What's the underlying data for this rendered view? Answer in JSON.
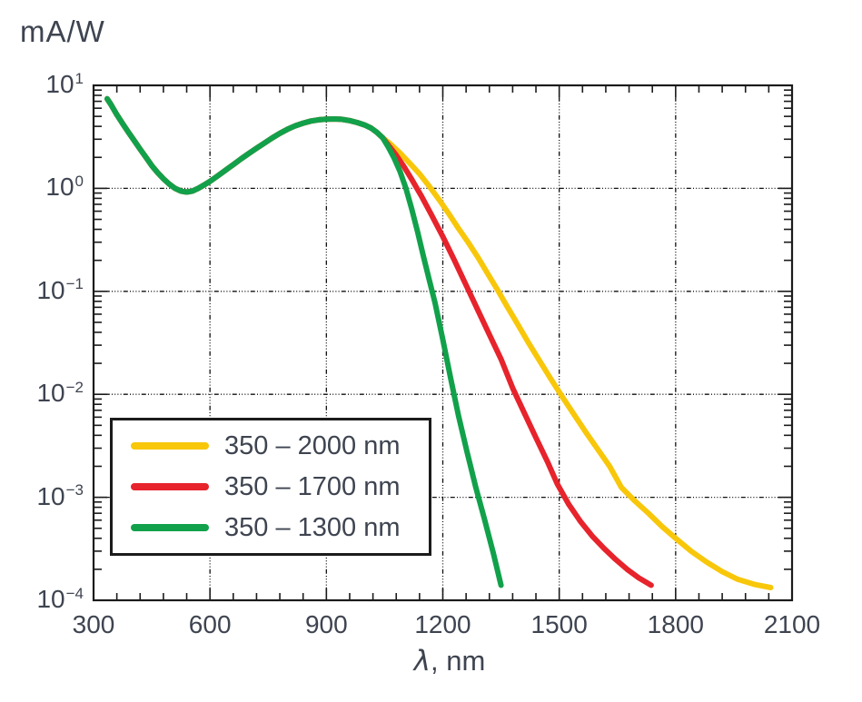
{
  "chart": {
    "y_unit": "mA/W",
    "x_label_symbol": "λ",
    "x_label_rest": ", nm"
  },
  "x_axis": {
    "range": [
      300,
      2100
    ],
    "ticks": [
      300,
      600,
      900,
      1200,
      1500,
      1800,
      2100
    ],
    "minor_step": 60,
    "gridlines": [
      600,
      900,
      1200,
      1500,
      1800
    ]
  },
  "y_axis": {
    "scale": "log",
    "range": [
      0.0001,
      10
    ],
    "base": "10",
    "tick_exponents": [
      {
        "text": "1",
        "value": 1
      },
      {
        "text": "0",
        "value": 0
      },
      {
        "text": "−1",
        "value": -1
      },
      {
        "text": "−2",
        "value": -2
      },
      {
        "text": "−3",
        "value": -3
      },
      {
        "text": "−4",
        "value": -4
      }
    ],
    "gridline_exponents": [
      0,
      -1,
      -2,
      -3
    ]
  },
  "legend": {
    "items": [
      {
        "label": "350 – 2000 nm",
        "color": "#F8C70A"
      },
      {
        "label": "350 – 1700 nm",
        "color": "#E7232C"
      },
      {
        "label": "350 – 1300 nm",
        "color": "#12A14B"
      }
    ]
  },
  "colors": {
    "text": "#3E4450",
    "axis": "#1B1B1B",
    "grid": "#111111",
    "background": "#FFFFFF"
  },
  "chart_data": {
    "type": "line",
    "title": "",
    "xlabel": "λ, nm",
    "ylabel": "mA/W",
    "x_range": [
      300,
      2100
    ],
    "y_range": [
      0.0001,
      10
    ],
    "y_scale": "log",
    "grid": true,
    "legend_position": "lower-left",
    "series": [
      {
        "name": "350 – 2000 nm",
        "color": "#F8C70A",
        "points": [
          [
            335,
            7.4
          ],
          [
            345,
            6.5
          ],
          [
            360,
            5.2
          ],
          [
            375,
            4.25
          ],
          [
            390,
            3.5
          ],
          [
            405,
            2.9
          ],
          [
            420,
            2.4
          ],
          [
            435,
            2.0
          ],
          [
            450,
            1.66
          ],
          [
            465,
            1.42
          ],
          [
            480,
            1.24
          ],
          [
            495,
            1.1
          ],
          [
            510,
            1.0
          ],
          [
            525,
            0.94
          ],
          [
            540,
            0.92
          ],
          [
            555,
            0.94
          ],
          [
            570,
            1.0
          ],
          [
            585,
            1.08
          ],
          [
            600,
            1.17
          ],
          [
            620,
            1.32
          ],
          [
            640,
            1.5
          ],
          [
            660,
            1.7
          ],
          [
            680,
            1.93
          ],
          [
            700,
            2.18
          ],
          [
            720,
            2.45
          ],
          [
            740,
            2.75
          ],
          [
            760,
            3.08
          ],
          [
            780,
            3.42
          ],
          [
            800,
            3.75
          ],
          [
            820,
            4.05
          ],
          [
            840,
            4.3
          ],
          [
            860,
            4.5
          ],
          [
            880,
            4.63
          ],
          [
            900,
            4.7
          ],
          [
            920,
            4.72
          ],
          [
            940,
            4.68
          ],
          [
            960,
            4.55
          ],
          [
            980,
            4.35
          ],
          [
            1000,
            4.1
          ],
          [
            1015,
            3.85
          ],
          [
            1030,
            3.5
          ],
          [
            1045,
            3.1
          ],
          [
            1065,
            2.7
          ],
          [
            1090,
            2.2
          ],
          [
            1115,
            1.75
          ],
          [
            1140,
            1.38
          ],
          [
            1165,
            1.05
          ],
          [
            1190,
            0.78
          ],
          [
            1215,
            0.57
          ],
          [
            1240,
            0.41
          ],
          [
            1265,
            0.3
          ],
          [
            1290,
            0.215
          ],
          [
            1315,
            0.15
          ],
          [
            1340,
            0.105
          ],
          [
            1365,
            0.072
          ],
          [
            1390,
            0.05
          ],
          [
            1420,
            0.032
          ],
          [
            1450,
            0.021
          ],
          [
            1480,
            0.0138
          ],
          [
            1510,
            0.0092
          ],
          [
            1540,
            0.0062
          ],
          [
            1570,
            0.0042
          ],
          [
            1600,
            0.0029
          ],
          [
            1630,
            0.002
          ],
          [
            1660,
            0.00125
          ],
          [
            1695,
            0.00092
          ],
          [
            1730,
            0.0007
          ],
          [
            1765,
            0.00052
          ],
          [
            1800,
            0.0004
          ],
          [
            1840,
            0.0003
          ],
          [
            1880,
            0.000235
          ],
          [
            1920,
            0.00019
          ],
          [
            1960,
            0.00016
          ],
          [
            2005,
            0.000142
          ],
          [
            2045,
            0.000133
          ]
        ]
      },
      {
        "name": "350 – 1700 nm",
        "color": "#E7232C",
        "points": [
          [
            335,
            7.4
          ],
          [
            345,
            6.5
          ],
          [
            360,
            5.2
          ],
          [
            375,
            4.25
          ],
          [
            390,
            3.5
          ],
          [
            405,
            2.9
          ],
          [
            420,
            2.4
          ],
          [
            435,
            2.0
          ],
          [
            450,
            1.66
          ],
          [
            465,
            1.42
          ],
          [
            480,
            1.24
          ],
          [
            495,
            1.1
          ],
          [
            510,
            1.0
          ],
          [
            525,
            0.94
          ],
          [
            540,
            0.92
          ],
          [
            555,
            0.94
          ],
          [
            570,
            1.0
          ],
          [
            585,
            1.08
          ],
          [
            600,
            1.17
          ],
          [
            620,
            1.32
          ],
          [
            640,
            1.5
          ],
          [
            660,
            1.7
          ],
          [
            680,
            1.93
          ],
          [
            700,
            2.18
          ],
          [
            720,
            2.45
          ],
          [
            740,
            2.75
          ],
          [
            760,
            3.08
          ],
          [
            780,
            3.42
          ],
          [
            800,
            3.75
          ],
          [
            820,
            4.05
          ],
          [
            840,
            4.3
          ],
          [
            860,
            4.5
          ],
          [
            880,
            4.63
          ],
          [
            900,
            4.7
          ],
          [
            920,
            4.72
          ],
          [
            940,
            4.68
          ],
          [
            960,
            4.55
          ],
          [
            980,
            4.35
          ],
          [
            1000,
            4.1
          ],
          [
            1015,
            3.85
          ],
          [
            1030,
            3.5
          ],
          [
            1045,
            3.1
          ],
          [
            1060,
            2.62
          ],
          [
            1080,
            2.1
          ],
          [
            1100,
            1.62
          ],
          [
            1120,
            1.22
          ],
          [
            1145,
            0.84
          ],
          [
            1170,
            0.56
          ],
          [
            1200,
            0.34
          ],
          [
            1230,
            0.2
          ],
          [
            1260,
            0.115
          ],
          [
            1290,
            0.066
          ],
          [
            1320,
            0.038
          ],
          [
            1350,
            0.022
          ],
          [
            1380,
            0.0115
          ],
          [
            1410,
            0.0066
          ],
          [
            1440,
            0.0038
          ],
          [
            1470,
            0.0022
          ],
          [
            1495,
            0.00135
          ],
          [
            1525,
            0.00085
          ],
          [
            1555,
            0.00058
          ],
          [
            1585,
            0.00042
          ],
          [
            1615,
            0.00032
          ],
          [
            1645,
            0.00025
          ],
          [
            1675,
            0.0002
          ],
          [
            1705,
            0.000165
          ],
          [
            1737,
            0.00014
          ]
        ]
      },
      {
        "name": "350 – 1300 nm",
        "color": "#12A14B",
        "points": [
          [
            335,
            7.4
          ],
          [
            345,
            6.5
          ],
          [
            360,
            5.2
          ],
          [
            375,
            4.25
          ],
          [
            390,
            3.5
          ],
          [
            405,
            2.9
          ],
          [
            420,
            2.4
          ],
          [
            435,
            2.0
          ],
          [
            450,
            1.66
          ],
          [
            465,
            1.42
          ],
          [
            480,
            1.24
          ],
          [
            495,
            1.1
          ],
          [
            510,
            1.0
          ],
          [
            525,
            0.94
          ],
          [
            540,
            0.92
          ],
          [
            555,
            0.94
          ],
          [
            570,
            1.0
          ],
          [
            585,
            1.08
          ],
          [
            600,
            1.17
          ],
          [
            620,
            1.32
          ],
          [
            640,
            1.5
          ],
          [
            660,
            1.7
          ],
          [
            680,
            1.93
          ],
          [
            700,
            2.18
          ],
          [
            720,
            2.45
          ],
          [
            740,
            2.75
          ],
          [
            760,
            3.08
          ],
          [
            780,
            3.42
          ],
          [
            800,
            3.75
          ],
          [
            820,
            4.05
          ],
          [
            840,
            4.3
          ],
          [
            860,
            4.5
          ],
          [
            880,
            4.63
          ],
          [
            900,
            4.7
          ],
          [
            920,
            4.72
          ],
          [
            940,
            4.68
          ],
          [
            960,
            4.55
          ],
          [
            980,
            4.35
          ],
          [
            1000,
            4.1
          ],
          [
            1015,
            3.85
          ],
          [
            1030,
            3.5
          ],
          [
            1045,
            3.1
          ],
          [
            1060,
            2.5
          ],
          [
            1075,
            1.95
          ],
          [
            1090,
            1.45
          ],
          [
            1105,
            1.0
          ],
          [
            1120,
            0.63
          ],
          [
            1135,
            0.38
          ],
          [
            1150,
            0.22
          ],
          [
            1165,
            0.13
          ],
          [
            1180,
            0.077
          ],
          [
            1200,
            0.034
          ],
          [
            1220,
            0.0145
          ],
          [
            1240,
            0.0063
          ],
          [
            1262,
            0.0028
          ],
          [
            1285,
            0.00125
          ],
          [
            1307,
            0.00062
          ],
          [
            1330,
            0.00029
          ],
          [
            1350,
            0.00014
          ]
        ]
      }
    ]
  }
}
